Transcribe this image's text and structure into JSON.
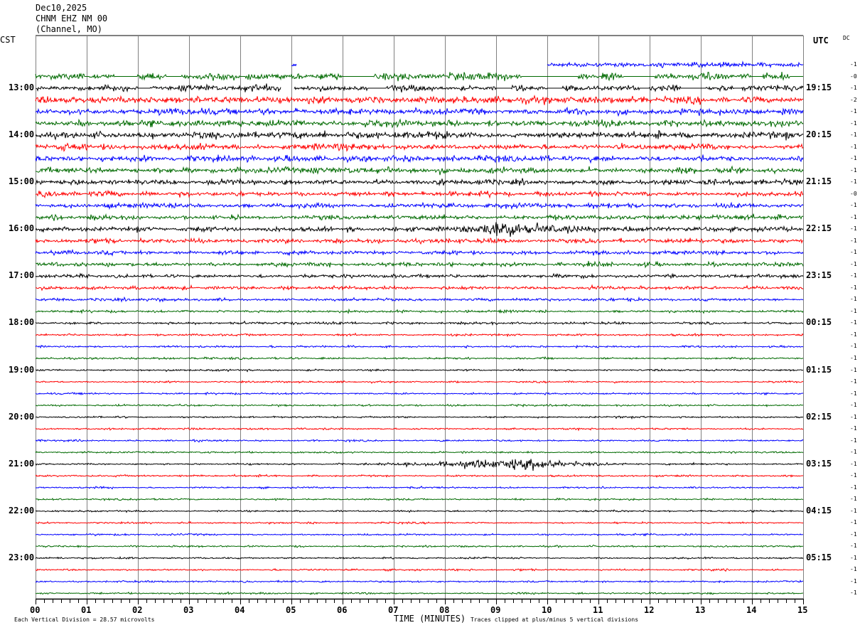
{
  "header": {
    "date": "Dec10,2025",
    "station": "CHNM EHZ NM 00",
    "channel_note": "(Channel, MO)"
  },
  "left_axis_title": "CST",
  "right_axis_title": "UTC",
  "dc_title": "DC",
  "footer": {
    "scale_note": "Each Vertical Division =   28.57 microvolts",
    "xlabel": "TIME (MINUTES)",
    "clip_note": "Traces clipped at plus/minus 5 vertical divisions"
  },
  "chart_data": {
    "type": "helicorder",
    "xlabel": "TIME (MINUTES)",
    "xlim": [
      0,
      15
    ],
    "x_ticks": [
      "00",
      "01",
      "02",
      "03",
      "04",
      "05",
      "06",
      "07",
      "08",
      "09",
      "10",
      "11",
      "12",
      "13",
      "14",
      "15"
    ],
    "grid": "vertical lines each minute",
    "colors": {
      "black": "#000000",
      "red": "#ff0000",
      "blue": "#0000ff",
      "green": "#006a00",
      "grid": "#808080"
    },
    "left_labels_cst": [
      "13:00",
      "14:00",
      "15:00",
      "16:00",
      "17:00",
      "18:00",
      "19:00",
      "20:00",
      "21:00",
      "22:00",
      "23:00"
    ],
    "right_labels_utc": [
      "19:15",
      "20:15",
      "21:15",
      "22:15",
      "23:15",
      "00:15",
      "01:15",
      "02:15",
      "03:15",
      "04:15",
      "05:15"
    ],
    "color_cycle": [
      "blue",
      "green",
      "black",
      "red"
    ],
    "dc_offsets": [
      "-1",
      "-0",
      "-1",
      "-2",
      "-1",
      "-1",
      "-1",
      "-1",
      "-1",
      "-1",
      "-1",
      "-0",
      "-1",
      "-1",
      "-1",
      "-1",
      "-1",
      "-1",
      "-1",
      "-1",
      "-1",
      "-1",
      "-1",
      "-1",
      "-1",
      "-1",
      "-1",
      "-1",
      "-1",
      "-1",
      "-1",
      "-1",
      "-1",
      "-1",
      "-1",
      "-1",
      "-1",
      "-1",
      "-1",
      "-1",
      "-1",
      "-1",
      "-1",
      "-1",
      "-1",
      "-1"
    ],
    "noise_divisions": [
      0.2,
      0.25,
      0.2,
      0.22,
      0.22,
      0.22,
      0.22,
      0.2,
      0.2,
      0.2,
      0.18,
      0.16,
      0.16,
      0.16,
      0.15,
      0.15,
      0.14,
      0.14,
      0.12,
      0.12,
      0.1,
      0.08,
      0.08,
      0.07,
      0.07,
      0.07,
      0.06,
      0.06,
      0.06,
      0.06,
      0.06,
      0.06,
      0.06,
      0.06,
      0.06,
      0.06,
      0.06,
      0.06,
      0.06,
      0.06,
      0.06,
      0.06,
      0.06,
      0.06,
      0.06,
      0.06
    ],
    "gaps": [
      {
        "trace": 0,
        "missing_minutes": [
          [
            0,
            5.0
          ],
          [
            5.1,
            10.0
          ]
        ]
      },
      {
        "trace": 2,
        "missing_minutes": [
          [
            4.8,
            5.05
          ]
        ]
      }
    ],
    "flat_segments": [
      {
        "trace": 1,
        "minutes": [
          [
            0.95,
            1.05
          ],
          [
            1.55,
            2.0
          ],
          [
            2.55,
            2.85
          ],
          [
            4.0,
            4.1
          ],
          [
            6.0,
            6.6
          ],
          [
            9.5,
            10.6
          ],
          [
            11.5,
            12.1
          ],
          [
            14.0,
            14.2
          ],
          [
            14.75,
            15
          ]
        ]
      },
      {
        "trace": 2,
        "minutes": [
          [
            2.0,
            2.25
          ],
          [
            6.5,
            6.85
          ],
          [
            9.0,
            9.3
          ],
          [
            10.0,
            10.3
          ],
          [
            11.8,
            12.0
          ],
          [
            12.6,
            13.1
          ],
          [
            13.65,
            13.8
          ]
        ]
      }
    ],
    "events": [
      {
        "trace": 14,
        "start_min": 8.1,
        "peak_min": 9.0,
        "end_min": 12.2,
        "peak_divisions": 0.65
      },
      {
        "trace": 34,
        "start_min": 5.9,
        "peak_min": 9.6,
        "end_min": 11.6,
        "peak_divisions": 0.55
      },
      {
        "trace": 7,
        "start_min": 0.4,
        "peak_min": 0.55,
        "end_min": 0.8,
        "peak_divisions": 0.35
      }
    ]
  }
}
